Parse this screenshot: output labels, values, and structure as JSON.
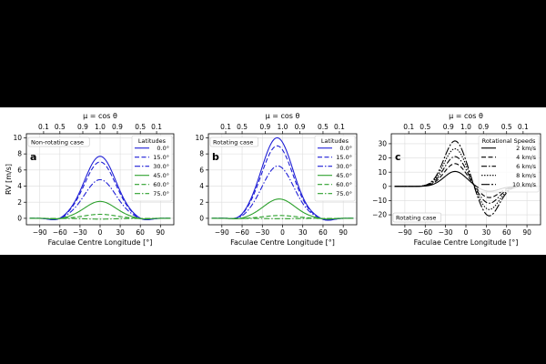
{
  "chart_data": [
    {
      "type": "line",
      "panel_label": "a",
      "annotation": "Non-rotating case",
      "xlabel": "Faculae Centre Longitude [°]",
      "ylabel": "RV [m/s]",
      "top_axis_label": "μ = cos θ",
      "top_ticks": [
        {
          "label": "0.1",
          "lon": -84.3
        },
        {
          "label": "0.5",
          "lon": -60
        },
        {
          "label": "0.9",
          "lon": -25.8
        },
        {
          "label": "1.0",
          "lon": 0
        },
        {
          "label": "0.9",
          "lon": 25.8
        },
        {
          "label": "0.5",
          "lon": 60
        },
        {
          "label": "0.1",
          "lon": 84.3
        }
      ],
      "xlim": [
        -110,
        110
      ],
      "ylim": [
        -0.8,
        10.5
      ],
      "xticks": [
        -90,
        -60,
        -30,
        0,
        30,
        60,
        90
      ],
      "yticks": [
        0,
        2,
        4,
        6,
        8,
        10
      ],
      "grid": true,
      "legend_title": "Latitudes",
      "legend_position": "top-right",
      "series": [
        {
          "name": "0.0°",
          "color": "#1f1fd6",
          "dash": "solid",
          "peak_x": 0,
          "peak": 7.7,
          "dip": -0.3
        },
        {
          "name": "15.0°",
          "color": "#1f1fd6",
          "dash": "dashed",
          "peak_x": 0,
          "peak": 7.0,
          "dip": -0.28
        },
        {
          "name": "30.0°",
          "color": "#1f1fd6",
          "dash": "dashdot",
          "peak_x": 0,
          "peak": 4.8,
          "dip": -0.2
        },
        {
          "name": "45.0°",
          "color": "#2ca02c",
          "dash": "solid",
          "peak_x": 0,
          "peak": 2.1,
          "dip": -0.12
        },
        {
          "name": "60.0°",
          "color": "#2ca02c",
          "dash": "dashed",
          "peak_x": 0,
          "peak": 0.5,
          "dip": -0.05
        },
        {
          "name": "75.0°",
          "color": "#2ca02c",
          "dash": "dashdot",
          "peak_x": 0,
          "peak": -0.1,
          "dip": -0.02
        }
      ]
    },
    {
      "type": "line",
      "panel_label": "b",
      "annotation": "Rotating case",
      "xlabel": "Faculae Centre Longitude [°]",
      "ylabel": "",
      "top_axis_label": "μ = cos θ",
      "top_ticks": [
        {
          "label": "0.1",
          "lon": -84.3
        },
        {
          "label": "0.5",
          "lon": -60
        },
        {
          "label": "0.9",
          "lon": -25.8
        },
        {
          "label": "1.0",
          "lon": 0
        },
        {
          "label": "0.9",
          "lon": 25.8
        },
        {
          "label": "0.5",
          "lon": 60
        },
        {
          "label": "0.1",
          "lon": 84.3
        }
      ],
      "xlim": [
        -110,
        110
      ],
      "ylim": [
        -0.8,
        10.5
      ],
      "xticks": [
        -90,
        -60,
        -30,
        0,
        30,
        60,
        90
      ],
      "yticks": [
        0,
        2,
        4,
        6,
        8,
        10
      ],
      "grid": true,
      "legend_title": "Latitudes",
      "legend_position": "top-right",
      "series": [
        {
          "name": "0.0°",
          "color": "#1f1fd6",
          "dash": "solid",
          "peak_x": -8,
          "peak": 10.0,
          "dip": -0.3
        },
        {
          "name": "15.0°",
          "color": "#1f1fd6",
          "dash": "dashed",
          "peak_x": -8,
          "peak": 9.0,
          "dip": -0.28
        },
        {
          "name": "30.0°",
          "color": "#1f1fd6",
          "dash": "dashdot",
          "peak_x": -7,
          "peak": 6.5,
          "dip": -0.2
        },
        {
          "name": "45.0°",
          "color": "#2ca02c",
          "dash": "solid",
          "peak_x": -5,
          "peak": 2.4,
          "dip": -0.12
        },
        {
          "name": "60.0°",
          "color": "#2ca02c",
          "dash": "dashed",
          "peak_x": -4,
          "peak": 0.35,
          "dip": -0.05
        },
        {
          "name": "75.0°",
          "color": "#2ca02c",
          "dash": "dashdot",
          "peak_x": -3,
          "peak": -0.05,
          "dip": -0.02
        }
      ]
    },
    {
      "type": "line",
      "panel_label": "c",
      "annotation": "Rotating case",
      "xlabel": "Faculae Centre Longitude [°]",
      "ylabel": "",
      "top_axis_label": "μ = cos θ",
      "top_ticks": [
        {
          "label": "0.1",
          "lon": -84.3
        },
        {
          "label": "0.5",
          "lon": -60
        },
        {
          "label": "0.9",
          "lon": -25.8
        },
        {
          "label": "1.0",
          "lon": 0
        },
        {
          "label": "0.9",
          "lon": 25.8
        },
        {
          "label": "0.5",
          "lon": 60
        },
        {
          "label": "0.1",
          "lon": 84.3
        }
      ],
      "xlim": [
        -110,
        110
      ],
      "ylim": [
        -27,
        37
      ],
      "xticks": [
        -90,
        -60,
        -30,
        0,
        30,
        60,
        90
      ],
      "yticks": [
        -20,
        -10,
        0,
        10,
        20,
        30
      ],
      "grid": true,
      "legend_title": "Rotational Speeds",
      "legend_position": "top-right",
      "series": [
        {
          "name": "2 km/s",
          "dash": "solid",
          "pos": 10.5,
          "neg": -3.5
        },
        {
          "name": "4 km/s",
          "dash": "dashed",
          "pos": 16.0,
          "neg": -8.0
        },
        {
          "name": "6 km/s",
          "dash": "dashdot",
          "pos": 21.0,
          "neg": -12.0
        },
        {
          "name": "8 km/s",
          "dash": "dotted",
          "pos": 26.5,
          "neg": -16.5
        },
        {
          "name": "10 km/s",
          "dash": "longdashdot",
          "pos": 32.0,
          "neg": -21.0
        }
      ]
    }
  ]
}
